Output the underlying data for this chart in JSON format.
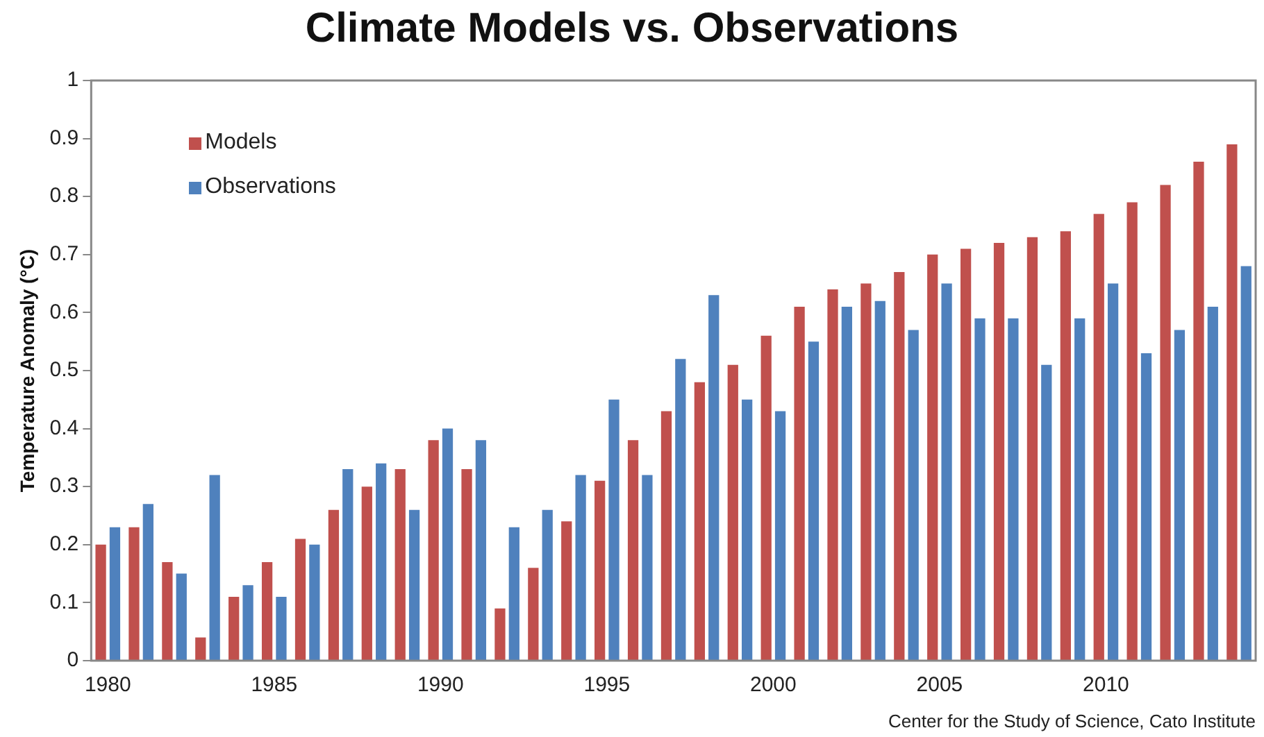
{
  "chart_data": {
    "type": "bar",
    "title": "Climate Models vs. Observations",
    "ylabel": "Temperature Anomaly (°C)",
    "categories": [
      "1980",
      null,
      null,
      null,
      null,
      "1985",
      null,
      null,
      null,
      null,
      "1990",
      null,
      null,
      null,
      null,
      "1995",
      null,
      null,
      null,
      null,
      "2000",
      null,
      null,
      null,
      null,
      "2005",
      null,
      null,
      null,
      null,
      "2010",
      null,
      null,
      null,
      null
    ],
    "series": [
      {
        "name": "Models",
        "color": "#c0504d",
        "values": [
          0.2,
          0.23,
          0.17,
          0.04,
          0.11,
          0.17,
          0.21,
          0.26,
          0.3,
          0.33,
          0.38,
          0.33,
          0.09,
          0.16,
          0.24,
          0.31,
          0.38,
          0.43,
          0.48,
          0.51,
          0.56,
          0.61,
          0.64,
          0.65,
          0.67,
          0.7,
          0.71,
          0.72,
          0.73,
          0.74,
          0.77,
          0.79,
          0.82,
          0.86,
          0.89
        ]
      },
      {
        "name": "Observations",
        "color": "#4f81bd",
        "values": [
          0.23,
          0.27,
          0.15,
          0.32,
          0.13,
          0.11,
          0.2,
          0.33,
          0.34,
          0.26,
          0.4,
          0.38,
          0.23,
          0.26,
          0.32,
          0.45,
          0.32,
          0.52,
          0.63,
          0.45,
          0.43,
          0.55,
          0.61,
          0.62,
          0.57,
          0.65,
          0.59,
          0.59,
          0.51,
          0.59,
          0.65,
          0.53,
          0.57,
          0.61,
          0.68
        ]
      }
    ],
    "ylim": [
      0,
      1
    ],
    "yticks": [
      0,
      0.1,
      0.2,
      0.3,
      0.4,
      0.5,
      0.6,
      0.7,
      0.8,
      0.9,
      1
    ],
    "legend": "top left",
    "grid": false,
    "annotations": [
      "Center for the Study of Science, Cato Institute"
    ]
  }
}
